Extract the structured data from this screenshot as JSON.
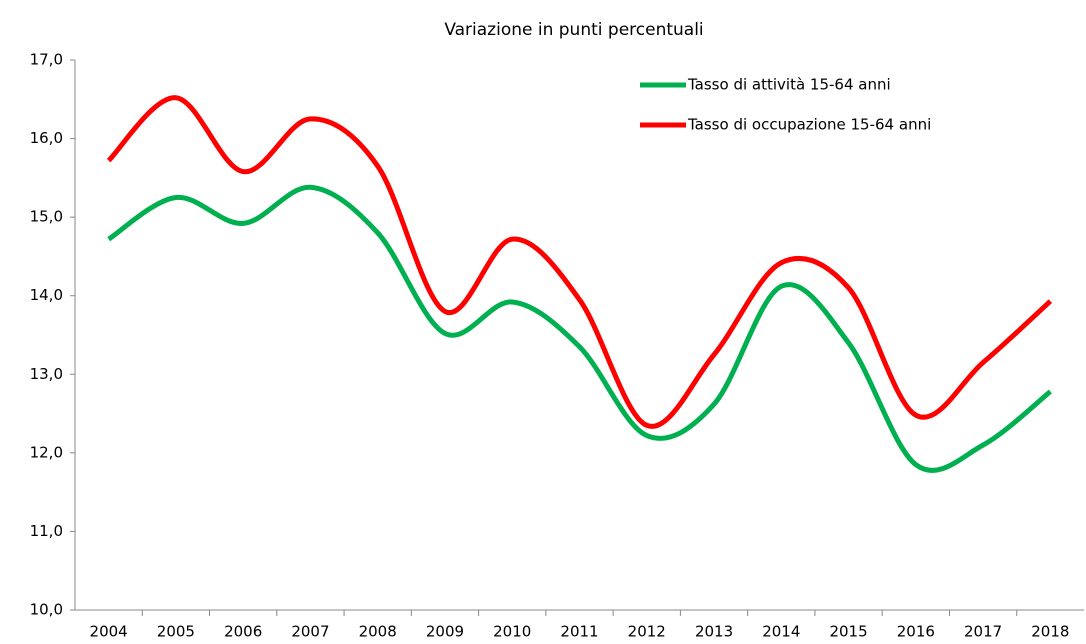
{
  "chart_data": {
    "type": "line",
    "title": "Variazione in punti percentuali",
    "categories": [
      "2004",
      "2005",
      "2006",
      "2007",
      "2008",
      "2009",
      "2010",
      "2011",
      "2012",
      "2013",
      "2014",
      "2015",
      "2016",
      "2017",
      "2018"
    ],
    "series": [
      {
        "name": "Tasso di attività 15-64 anni",
        "color": "#00b050",
        "values": [
          14.72,
          15.25,
          14.92,
          15.38,
          14.8,
          13.52,
          13.92,
          13.35,
          12.22,
          12.62,
          14.12,
          13.4,
          11.85,
          12.1,
          12.78
        ]
      },
      {
        "name": "Tasso di occupazione 15-64 anni",
        "color": "#ff0000",
        "values": [
          15.72,
          16.52,
          15.58,
          16.25,
          15.65,
          13.8,
          14.72,
          13.95,
          12.35,
          13.25,
          14.42,
          14.1,
          12.48,
          13.15,
          13.93
        ]
      }
    ],
    "ylim": [
      10,
      17
    ],
    "yticks": [
      {
        "value": 10,
        "label": "10,0"
      },
      {
        "value": 11,
        "label": "11,0"
      },
      {
        "value": 12,
        "label": "12,0"
      },
      {
        "value": 13,
        "label": "13,0"
      },
      {
        "value": 14,
        "label": "14,0"
      },
      {
        "value": 15,
        "label": "15,0"
      },
      {
        "value": 16,
        "label": "16,0"
      },
      {
        "value": 17,
        "label": "17,0"
      }
    ],
    "grid": false,
    "legend": "top-right",
    "smooth": true
  }
}
